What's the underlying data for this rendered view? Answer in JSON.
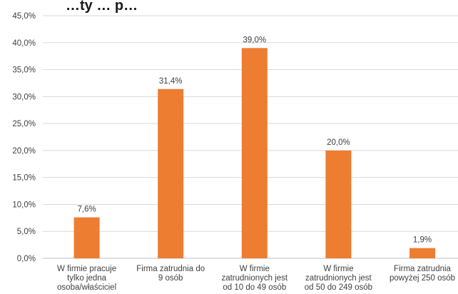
{
  "chart_data": {
    "type": "bar",
    "title": "…ty … p…",
    "categories": [
      [
        "W firmie pracuje",
        "tylko jedna",
        "osoba/właściciel"
      ],
      [
        "Firma zatrudnia do",
        "9 osób"
      ],
      [
        "W firmie",
        "zatrudnionych jest",
        "od 10 do 49 osób"
      ],
      [
        "W firmie",
        "zatrudnionych jest",
        "od 50 do 249 osób"
      ],
      [
        "Firma zatrudnia",
        "powyżej 250 osób"
      ]
    ],
    "values": [
      7.6,
      31.4,
      39.0,
      20.0,
      1.9
    ],
    "data_labels": [
      "7,6%",
      "31,4%",
      "39,0%",
      "20,0%",
      "1,9%"
    ],
    "ylim": [
      0,
      45
    ],
    "y_ticks": [
      "0,0%",
      "5,0%",
      "10,0%",
      "15,0%",
      "20,0%",
      "25,0%",
      "30,0%",
      "35,0%",
      "40,0%",
      "45,0%"
    ],
    "y_tick_values": [
      0,
      5,
      10,
      15,
      20,
      25,
      30,
      35,
      40,
      45
    ],
    "grid": true,
    "legend": "none",
    "xlabel": "",
    "ylabel": "",
    "colors": {
      "bar": "#ED7D31",
      "grid": "#D9D9D9",
      "text": "#404040"
    }
  }
}
